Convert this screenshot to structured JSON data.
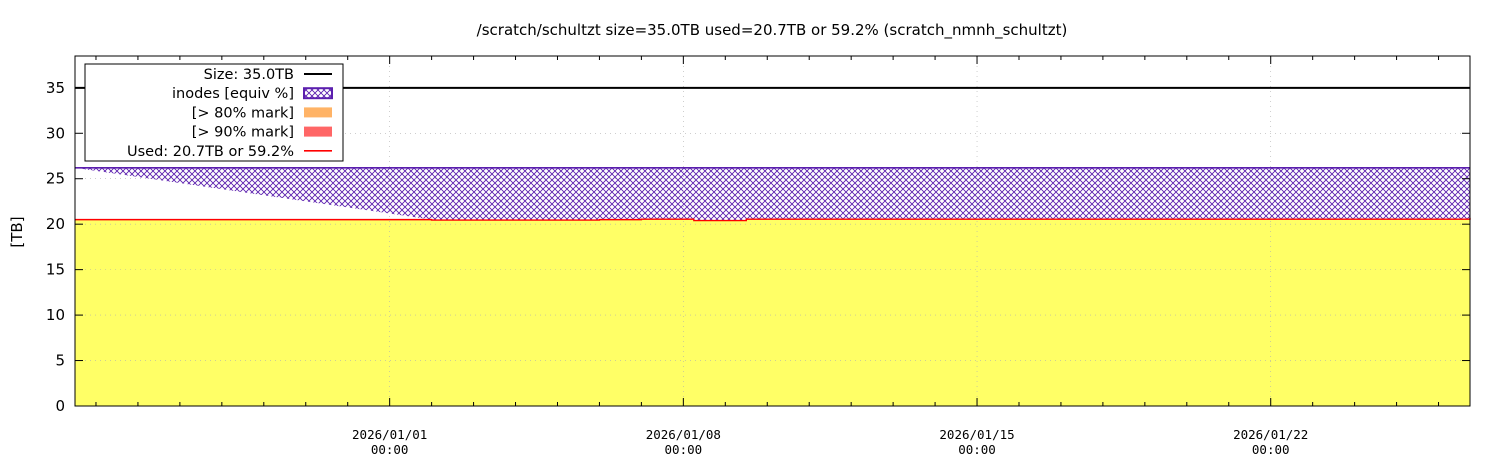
{
  "chart_data": {
    "type": "area",
    "title": "/scratch/schultzt size=35.0TB used=20.7TB or 59.2% (scratch_nmnh_schultzt)",
    "ylabel": "[TB]",
    "xlabel": "",
    "ylim": [
      0,
      38.5
    ],
    "yticks": [
      0,
      5,
      10,
      15,
      20,
      25,
      30,
      35
    ],
    "xlim": [
      "2025-12-24T12:00",
      "2026-01-26T18:00"
    ],
    "xticks": [
      {
        "x": "2026-01-01T00:00",
        "date": "2026/01/01",
        "time": "00:00"
      },
      {
        "x": "2026-01-08T00:00",
        "date": "2026/01/08",
        "time": "00:00"
      },
      {
        "x": "2026-01-15T00:00",
        "date": "2026/01/15",
        "time": "00:00"
      },
      {
        "x": "2026-01-22T00:00",
        "date": "2026/01/22",
        "time": "00:00"
      }
    ],
    "grid": true,
    "legend_position": "top-left",
    "size_value": 35.0,
    "series": [
      {
        "name": "Size: 35.0TB",
        "kind": "line",
        "color": "#000000",
        "values": [
          35.0
        ]
      },
      {
        "name": "inodes [equiv %]",
        "kind": "hatched-band",
        "color": "#5b1fae",
        "values": [
          26.2
        ]
      },
      {
        "name": "[> 80% mark]",
        "kind": "fill",
        "color": "#ffb366",
        "values": []
      },
      {
        "name": "[> 90% mark]",
        "kind": "fill",
        "color": "#ff6666",
        "values": []
      },
      {
        "name": "Used: 20.7TB or 59.2%",
        "kind": "step-area",
        "color": "#ff0000",
        "fill": "#ffff66",
        "x": [
          "2025-12-24T12:00",
          "2026-01-02T00:00",
          "2026-01-06T00:00",
          "2026-01-07T00:00",
          "2026-01-08T06:00",
          "2026-01-09T12:00",
          "2026-01-26T18:00"
        ],
        "values": [
          20.5,
          20.45,
          20.5,
          20.55,
          20.4,
          20.55,
          20.7
        ]
      }
    ]
  }
}
